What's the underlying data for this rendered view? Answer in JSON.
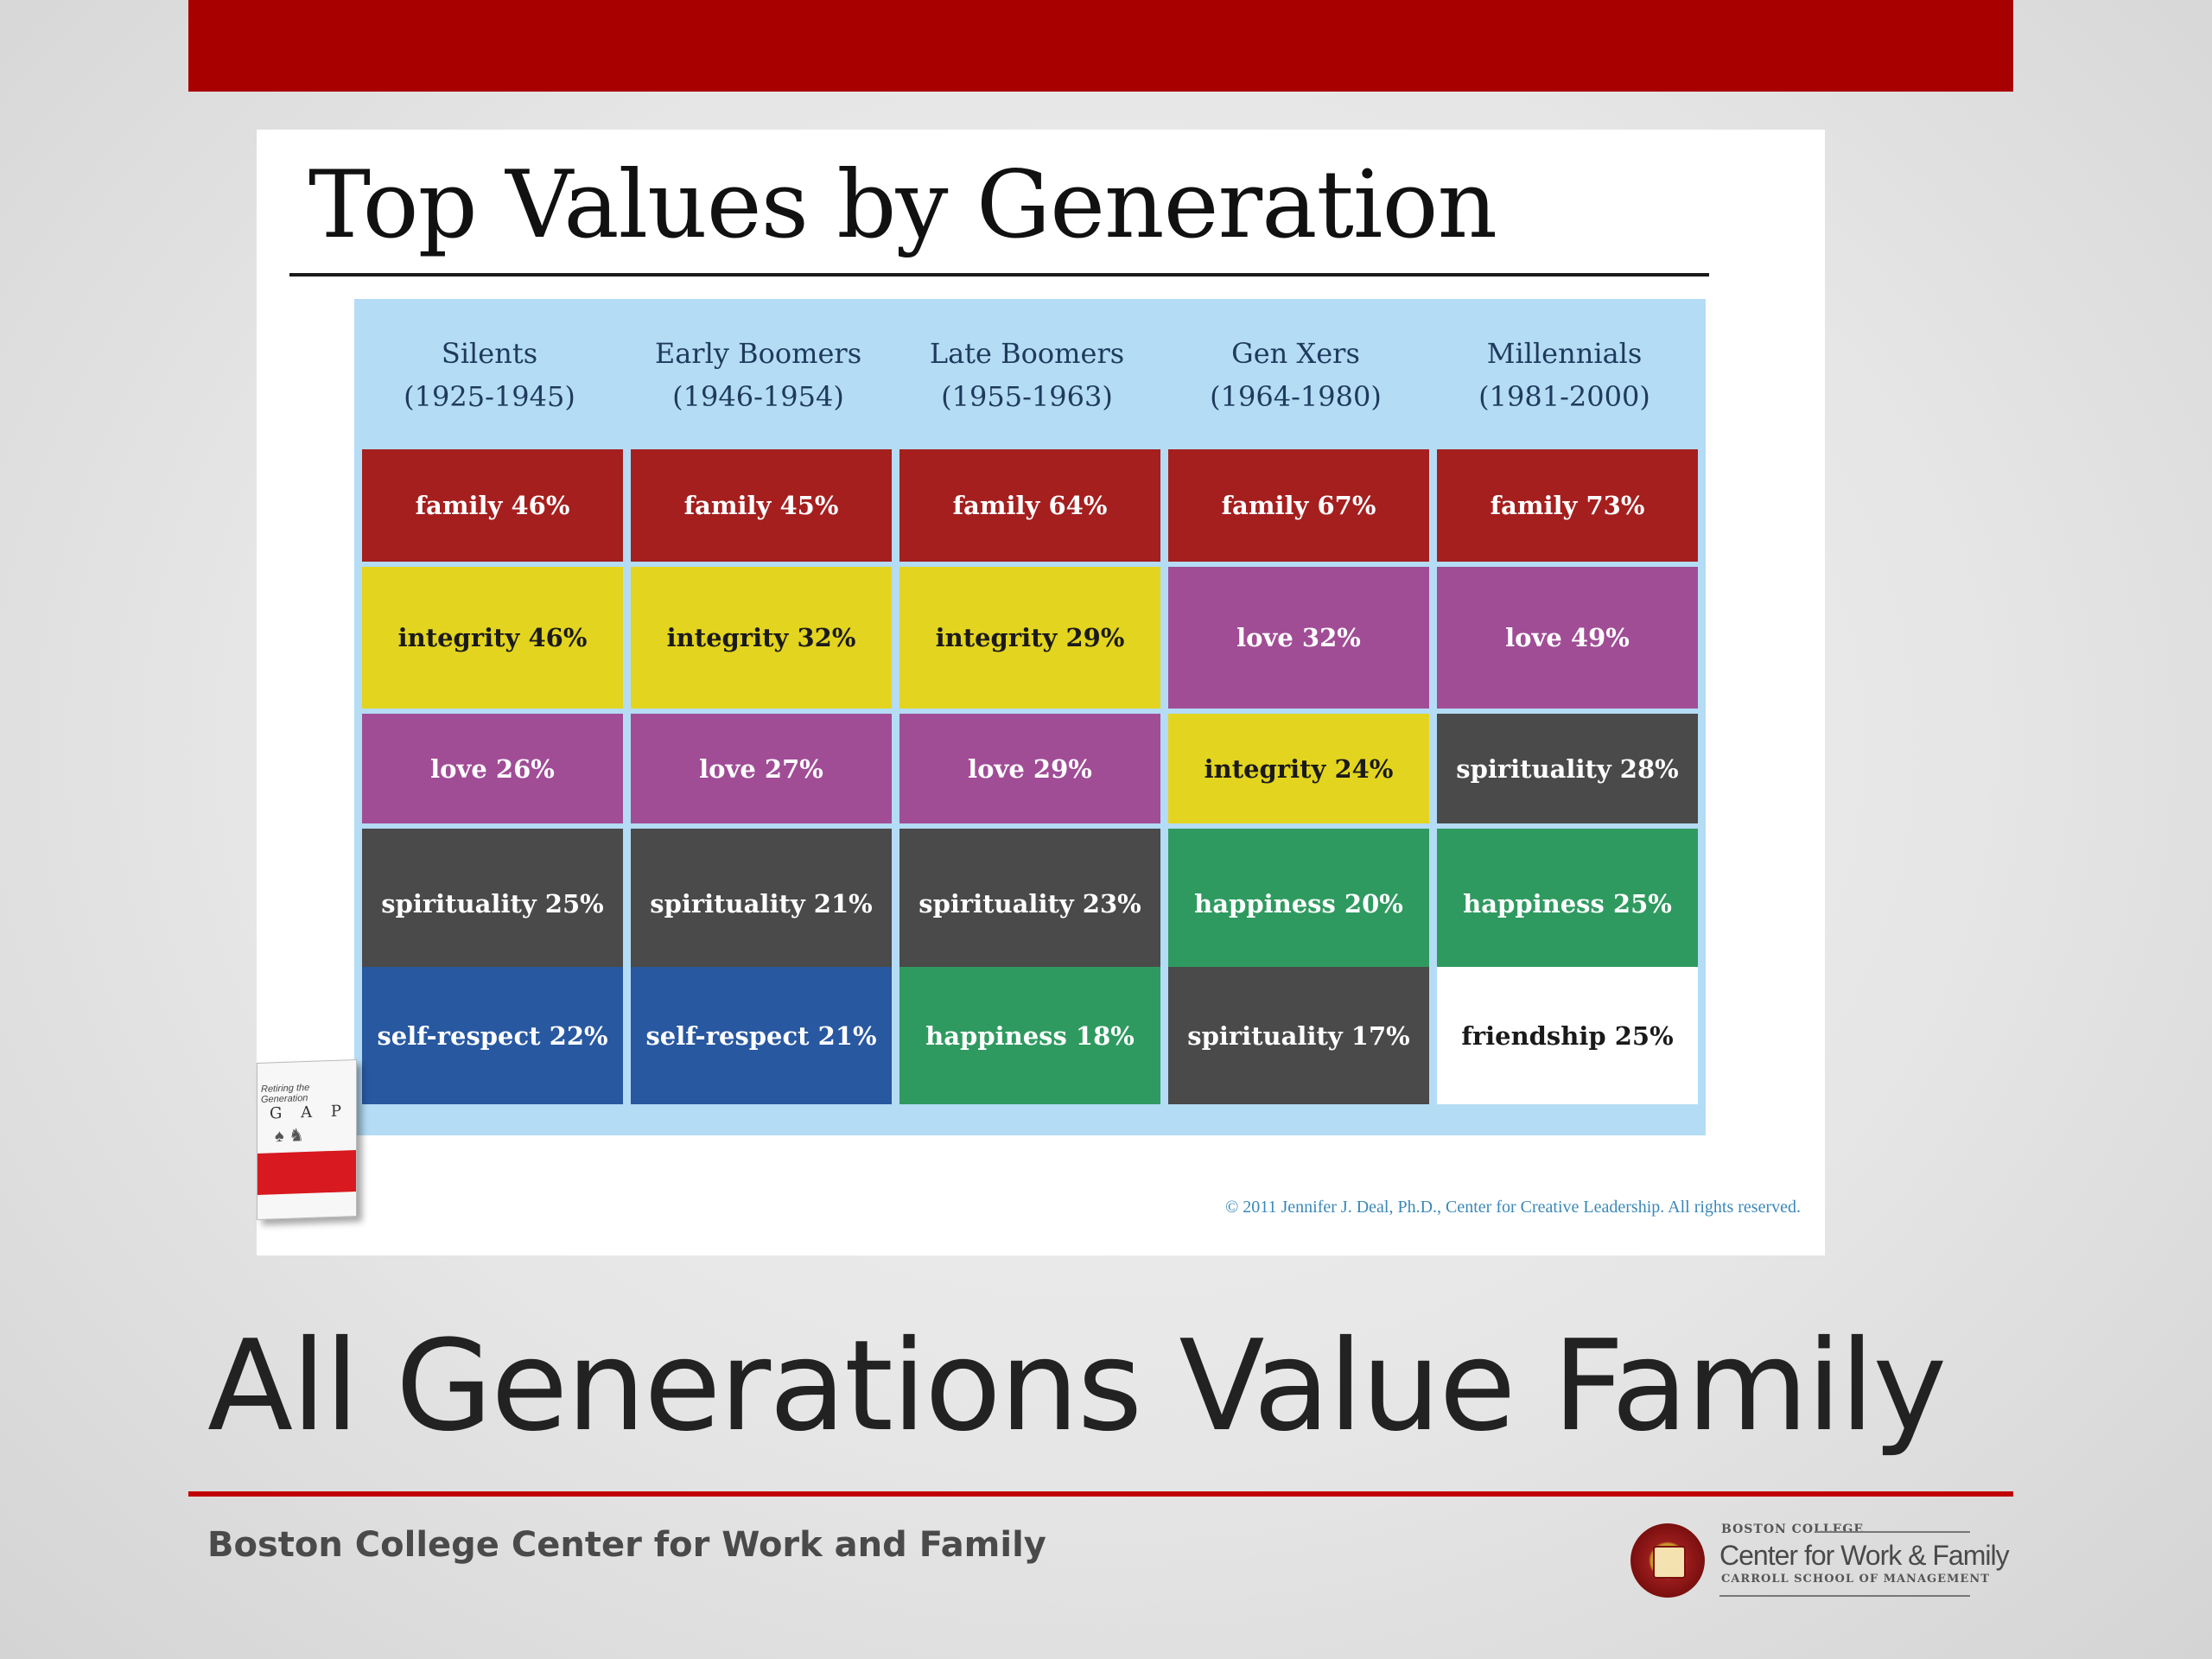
{
  "slide": {
    "image_title": "Top Values by Generation",
    "main_heading": "All Generations Value Family",
    "footer_text": "Boston College Center for Work and Family",
    "accent_color": "#a80000"
  },
  "table": {
    "header_bg": "#b4dcf5",
    "generations": [
      {
        "name": "Silents",
        "years": "(1925-1945)"
      },
      {
        "name": "Early Boomers",
        "years": "(1946-1954)"
      },
      {
        "name": "Late Boomers",
        "years": "(1955-1963)"
      },
      {
        "name": "Gen Xers",
        "years": "(1964-1980)"
      },
      {
        "name": "Millennials",
        "years": "(1981-2000)"
      }
    ],
    "value_colors": {
      "family": "#a51f1f",
      "integrity": "#e3d41f",
      "love": "#a04d96",
      "spirituality": "#4a4a4a",
      "self-respect": "#2858a0",
      "happiness": "#2f9a60",
      "friendship": "#ffffff"
    },
    "rows": [
      [
        {
          "label": "family 46%",
          "value": "family"
        },
        {
          "label": "family 45%",
          "value": "family"
        },
        {
          "label": "family 64%",
          "value": "family"
        },
        {
          "label": "family 67%",
          "value": "family"
        },
        {
          "label": "family 73%",
          "value": "family"
        }
      ],
      [
        {
          "label": "integrity 46%",
          "value": "integrity"
        },
        {
          "label": "integrity 32%",
          "value": "integrity"
        },
        {
          "label": "integrity 29%",
          "value": "integrity"
        },
        {
          "label": "love 32%",
          "value": "love"
        },
        {
          "label": "love 49%",
          "value": "love"
        }
      ],
      [
        {
          "label": "love 26%",
          "value": "love"
        },
        {
          "label": "love 27%",
          "value": "love"
        },
        {
          "label": "love 29%",
          "value": "love"
        },
        {
          "label": "integrity 24%",
          "value": "integrity"
        },
        {
          "label": "spirituality 28%",
          "value": "spirituality"
        }
      ],
      [
        {
          "label": "spirituality 25%",
          "value": "spirituality"
        },
        {
          "label": "spirituality 21%",
          "value": "spirituality"
        },
        {
          "label": "spirituality 23%",
          "value": "spirituality"
        },
        {
          "label": "happiness 20%",
          "value": "happiness"
        },
        {
          "label": "happiness 25%",
          "value": "happiness"
        }
      ],
      [
        {
          "label": "self-respect 22%",
          "value": "self-respect"
        },
        {
          "label": "self-respect 21%",
          "value": "self-respect"
        },
        {
          "label": "happiness 18%",
          "value": "happiness"
        },
        {
          "label": "spirituality 17%",
          "value": "spirituality"
        },
        {
          "label": "friendship 25%",
          "value": "friendship"
        }
      ]
    ],
    "copyright": "© 2011 Jennifer J. Deal, Ph.D., Center for Creative Leadership.  All rights reserved."
  },
  "book": {
    "title": "Retiring the Generation",
    "gap_text": "G A P"
  },
  "logo": {
    "line1": "BOSTON COLLEGE",
    "line2": "Center for Work & Family",
    "line3": "CARROLL SCHOOL OF MANAGEMENT"
  }
}
